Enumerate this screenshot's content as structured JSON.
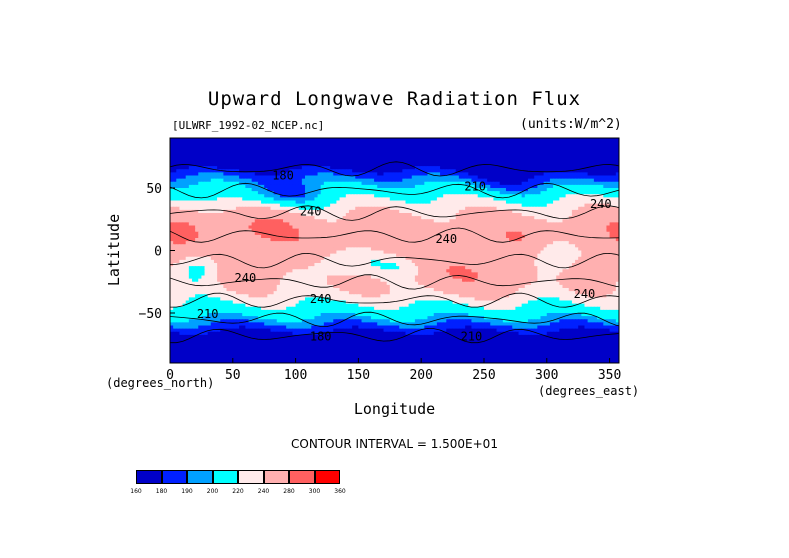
{
  "chart_data": {
    "type": "heatmap",
    "title": "Upward Longwave Radiation Flux",
    "file_label": "[ULWRF_1992-02_NCEP.nc]",
    "units_label": "(units:W/m^2)",
    "xlabel": "Longitude",
    "ylabel": "Latitude",
    "x_unit_label": "(degrees_east)",
    "y_unit_label": "(degrees_north)",
    "x_ticks": [
      0,
      50,
      100,
      150,
      200,
      250,
      300,
      350
    ],
    "y_ticks": [
      50,
      0,
      -50
    ],
    "y_tick_labels": [
      "50",
      "0",
      "−50"
    ],
    "xlim": [
      0,
      357.5
    ],
    "ylim": [
      -90,
      90
    ],
    "contour_interval": "CONTOUR INTERVAL = 1.500E+01",
    "contour_labels": [
      {
        "text": "180",
        "lon": 90,
        "lat": 57
      },
      {
        "text": "210",
        "lon": 243,
        "lat": 48
      },
      {
        "text": "240",
        "lon": 343,
        "lat": 34
      },
      {
        "text": "240",
        "lon": 112,
        "lat": 28
      },
      {
        "text": "240",
        "lon": 220,
        "lat": 6
      },
      {
        "text": "240",
        "lon": 60,
        "lat": -25
      },
      {
        "text": "240",
        "lon": 120,
        "lat": -42
      },
      {
        "text": "240",
        "lon": 330,
        "lat": -38
      },
      {
        "text": "210",
        "lon": 30,
        "lat": -54
      },
      {
        "text": "210",
        "lon": 240,
        "lat": -72
      },
      {
        "text": "180",
        "lon": 120,
        "lat": -72
      }
    ],
    "colorbar": {
      "levels": [
        "160",
        "180",
        "190",
        "200",
        "220",
        "240",
        "280",
        "300",
        "360"
      ],
      "colors": [
        "#0000c8",
        "#0020ff",
        "#00a0ff",
        "#00ffff",
        "#ffeaea",
        "#ffb0b0",
        "#ff6060",
        "#ff0000"
      ]
    }
  }
}
